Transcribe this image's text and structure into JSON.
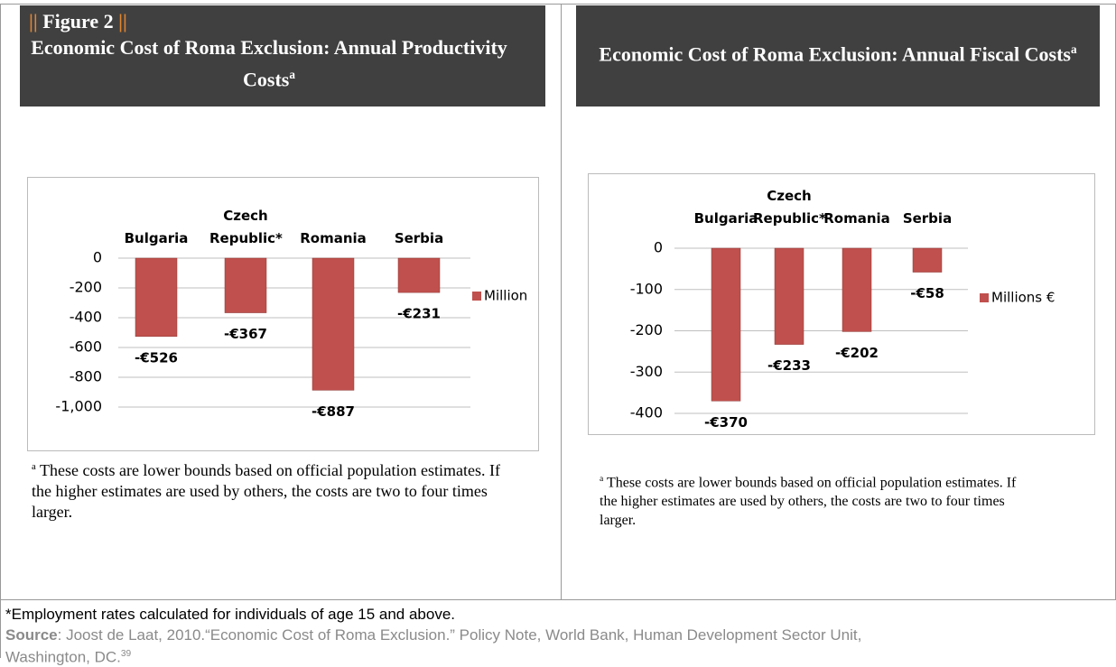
{
  "figure_marker": "||",
  "figure_label": "Figure 2",
  "chart_data": [
    {
      "type": "bar",
      "title": "Economic Cost of Roma Exclusion: Annual Productivity Costs",
      "title_sup": "a",
      "categories": [
        "Bulgaria",
        "Czech Republic*",
        "Romania",
        "Serbia"
      ],
      "series": [
        {
          "name": "Million",
          "color": "#c0504d",
          "values": [
            -526,
            -367,
            -887,
            -231
          ],
          "value_labels": [
            "-€526",
            "-€367",
            "-€887",
            "-€231"
          ]
        }
      ],
      "ylim": [
        -1000,
        0
      ],
      "yticks": [
        0,
        -200,
        -400,
        -600,
        -800,
        {
          "value": -1000,
          "label": "-1,000"
        }
      ],
      "grid": true,
      "legend": "right",
      "note_marker": "a",
      "note": "These costs are lower bounds based on official population estimates. If the higher estimates are used by others, the costs are two to four times larger."
    },
    {
      "type": "bar",
      "title": "Economic Cost of Roma Exclusion: Annual Fiscal Costs",
      "title_sup": "a",
      "categories": [
        "Bulgaria",
        "Czech Republic*",
        "Romania",
        "Serbia"
      ],
      "series": [
        {
          "name": "Millions €",
          "color": "#c0504d",
          "values": [
            -370,
            -233,
            -202,
            -58
          ],
          "value_labels": [
            "-€370",
            "-€233",
            "-€202",
            "-€58"
          ]
        }
      ],
      "ylim": [
        -400,
        0
      ],
      "yticks": [
        0,
        -100,
        -200,
        -300,
        -400
      ],
      "grid": true,
      "legend": "right",
      "note_marker": "a",
      "note": "These costs are lower bounds based on official population estimates. If the higher estimates are used by others, the costs are two to four times larger."
    }
  ],
  "footnote": "*Employment rates calculated for individuals of age 15 and above.",
  "source_label": "Source",
  "source": ": Joost de Laat, 2010.“Economic Cost of Roma Exclusion.” Policy Note, World Bank, Human Development Sector Unit, Washington, DC.",
  "source_sup": "39"
}
